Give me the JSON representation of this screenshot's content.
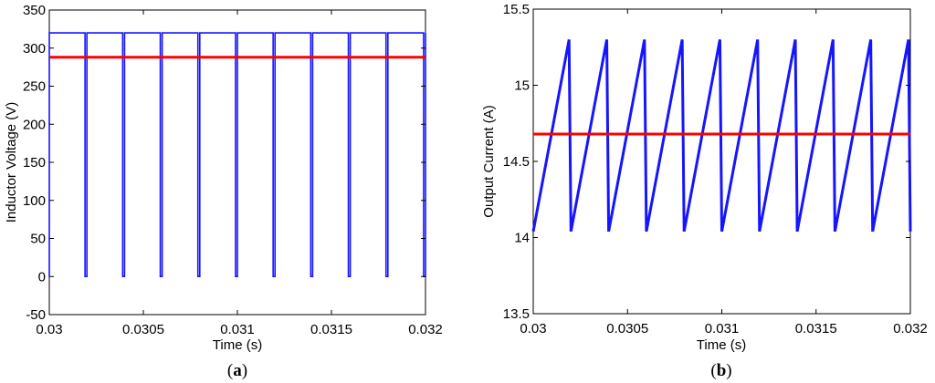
{
  "chart_data": [
    {
      "type": "line",
      "caption": "a",
      "xlabel": "Time (s)",
      "ylabel": "Inductor Voltage (V)",
      "xlim": [
        0.03,
        0.032
      ],
      "ylim": [
        -50,
        350
      ],
      "xticks": [
        "0.03",
        "0.0305",
        "0.031",
        "0.0315",
        "0.032"
      ],
      "xtick_values": [
        0.03,
        0.0305,
        0.031,
        0.0315,
        0.032
      ],
      "yticks": [
        "-50",
        "0",
        "50",
        "100",
        "150",
        "200",
        "250",
        "300",
        "350"
      ],
      "ytick_values": [
        -50,
        0,
        50,
        100,
        150,
        200,
        250,
        300,
        350
      ],
      "grid": false,
      "series": [
        {
          "color": "#1515ff",
          "line_width": 1.6,
          "shape": "pulse",
          "period": 0.0002,
          "high": 320,
          "low": 0,
          "low_start_offset": 0.00019,
          "low_duration": 1e-05,
          "cycles": 10,
          "x_start": 0.03,
          "x_end": 0.032
        },
        {
          "color": "#ff0000",
          "line_width": 3,
          "shape": "constant",
          "value": 288,
          "x_start": 0.03,
          "x_end": 0.032
        }
      ]
    },
    {
      "type": "line",
      "caption": "b",
      "xlabel": "Time (s)",
      "ylabel": "Output Current (A)",
      "xlim": [
        0.03,
        0.032
      ],
      "ylim": [
        13.5,
        15.5
      ],
      "xticks": [
        "0.03",
        "0.0305",
        "0.031",
        "0.0315",
        "0.032"
      ],
      "xtick_values": [
        0.03,
        0.0305,
        0.031,
        0.0315,
        0.032
      ],
      "yticks": [
        "13.5",
        "14",
        "14.5",
        "15",
        "15.5"
      ],
      "ytick_values": [
        13.5,
        14,
        14.5,
        15,
        15.5
      ],
      "grid": false,
      "series": [
        {
          "color": "#1515ff",
          "line_width": 3,
          "shape": "sawtooth",
          "period": 0.0002,
          "max": 15.3,
          "min": 14.04,
          "rise_duration": 0.00019,
          "fall_duration": 1e-05,
          "cycles": 10,
          "x_start": 0.03,
          "x_end": 0.032
        },
        {
          "color": "#ff0000",
          "line_width": 3,
          "shape": "constant",
          "value": 14.68,
          "x_start": 0.03,
          "x_end": 0.032
        }
      ]
    }
  ]
}
